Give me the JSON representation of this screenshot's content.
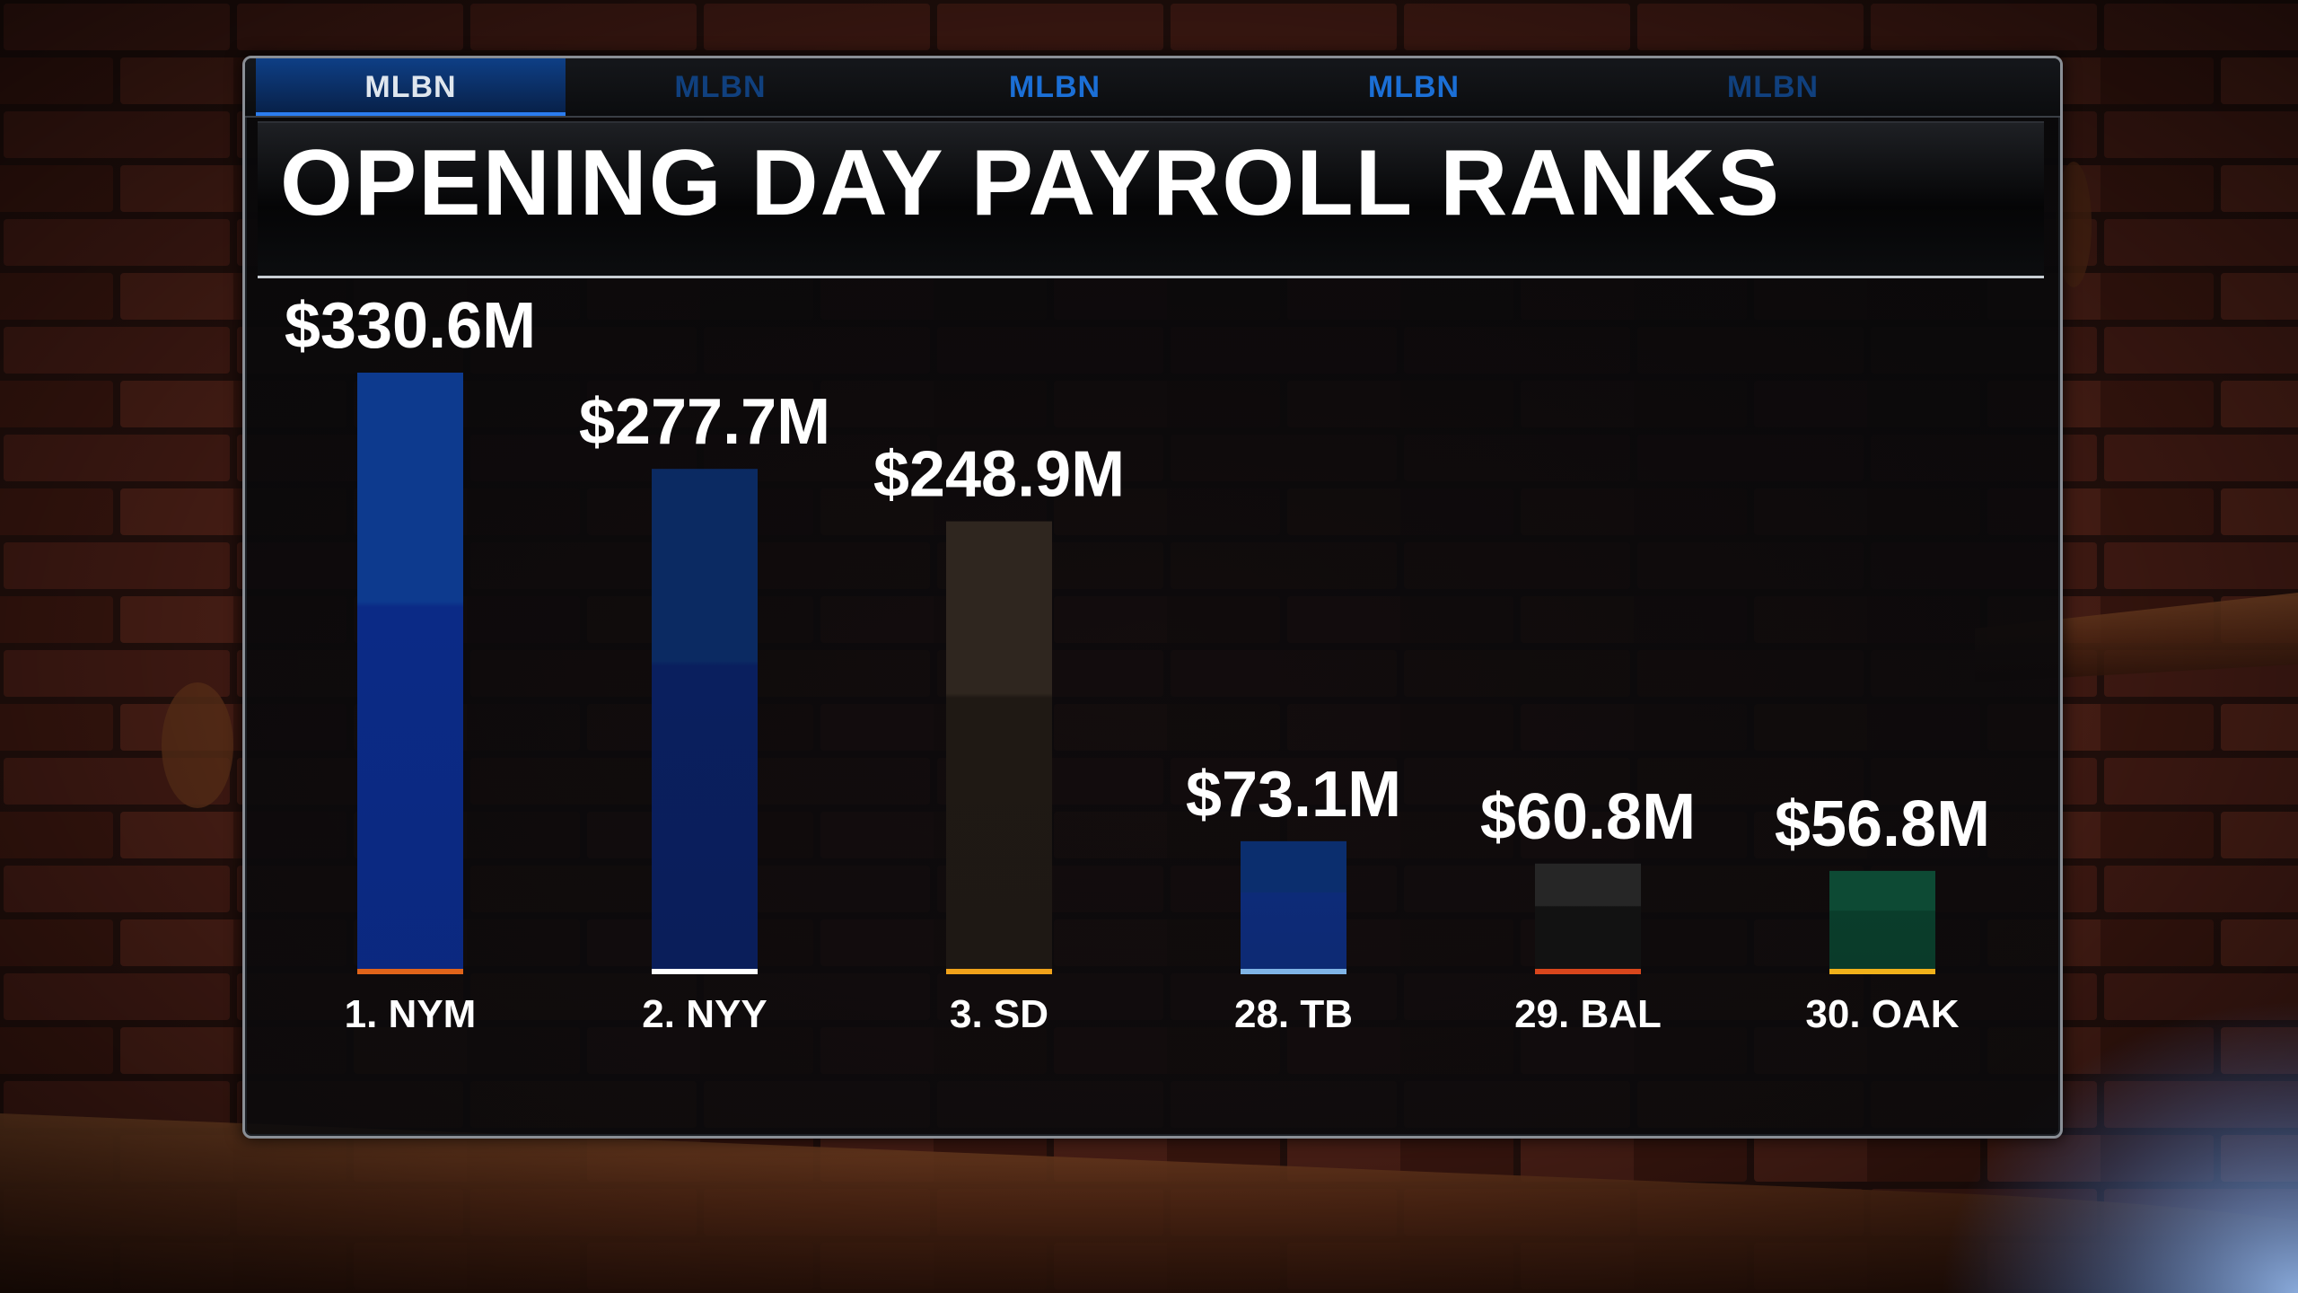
{
  "tabs": [
    {
      "label": "MLBN",
      "state": "active"
    },
    {
      "label": "MLBN",
      "state": "dim"
    },
    {
      "label": "MLBN",
      "state": "normal"
    },
    {
      "label": "MLBN",
      "state": "normal"
    },
    {
      "label": "MLBN",
      "state": "dim"
    }
  ],
  "title": "OPENING DAY PAYROLL RANKS",
  "chart_data": {
    "type": "bar",
    "title": "OPENING DAY PAYROLL RANKS",
    "xlabel": "",
    "ylabel": "",
    "grid": false,
    "categories": [
      "1. NYM",
      "2. NYY",
      "3. SD",
      "28. TB",
      "29. BAL",
      "30. OAK"
    ],
    "values": [
      330.6,
      277.7,
      248.9,
      73.1,
      60.8,
      56.8
    ],
    "value_labels": [
      "$330.6M",
      "$277.7M",
      "$248.9M",
      "$73.1M",
      "$60.8M",
      "$56.8M"
    ],
    "colors": [
      {
        "top": "#0d3a8e",
        "bottom": "#0b2a86",
        "accent": "#e0641a"
      },
      {
        "top": "#0b2a62",
        "bottom": "#0a1f5e",
        "accent": "#ffffff"
      },
      {
        "top": "#2f261f",
        "bottom": "#1f1914",
        "accent": "#f0a21a"
      },
      {
        "top": "#0b2e6e",
        "bottom": "#0d2b78",
        "accent": "#7fb4e6"
      },
      {
        "top": "#262626",
        "bottom": "#121212",
        "accent": "#d8461c"
      },
      {
        "top": "#0d4a34",
        "bottom": "#0a3d2b",
        "accent": "#f0b11a"
      }
    ]
  }
}
